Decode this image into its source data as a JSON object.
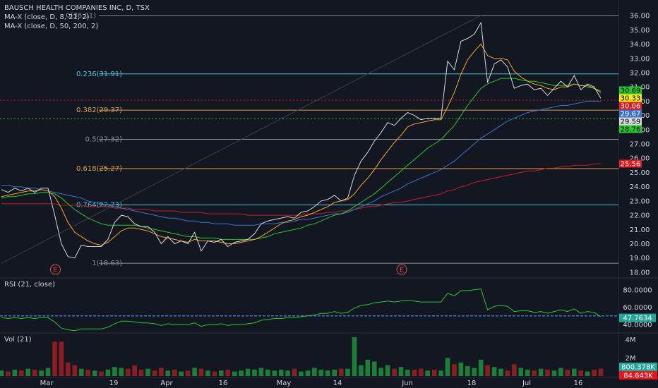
{
  "header": {
    "title": "BAUSCH HEALTH COMPANIES INC, D, TSX",
    "indicator1": "MA-X (close, D, 8, 21, 2)",
    "indicator2": "MA-X (close, D, 50, 200, 2)",
    "rsi_title": "RSI (21, close)",
    "vol_title": "Vol (21)"
  },
  "chart_data": {
    "type": "line",
    "x_axis": {
      "ticks": [
        "Mar",
        "19",
        "Apr",
        "16",
        "May",
        "14",
        "Jun",
        "18",
        "Jul",
        "16"
      ]
    },
    "price_axis": {
      "ylim": [
        17.6,
        36.6
      ],
      "ticks": [
        "36.00",
        "35.00",
        "34.00",
        "33.00",
        "32.00",
        "31.00",
        "30.00",
        "29.00",
        "28.00",
        "27.00",
        "26.00",
        "25.00",
        "24.00",
        "23.00",
        "22.00",
        "21.00",
        "20.00",
        "19.00",
        "18.00"
      ]
    },
    "price_close": [
      23.8,
      23.6,
      23.9,
      23.7,
      23.9,
      23.6,
      23.9,
      23.9,
      22.0,
      20.0,
      19.1,
      19.0,
      19.9,
      19.8,
      19.8,
      19.8,
      20.3,
      21.5,
      22.0,
      21.9,
      21.4,
      21.2,
      21.2,
      20.8,
      20.0,
      20.5,
      20.0,
      20.2,
      20.0,
      20.8,
      19.5,
      20.2,
      20.1,
      20.3,
      19.8,
      20.1,
      20.2,
      20.3,
      20.7,
      21.4,
      21.6,
      21.7,
      21.8,
      21.9,
      21.8,
      22.2,
      22.3,
      22.6,
      23.0,
      23.1,
      23.4,
      23.0,
      23.2,
      24.8,
      25.8,
      26.4,
      27.2,
      27.8,
      28.5,
      28.3,
      28.8,
      29.2,
      29.0,
      28.7,
      28.8,
      28.8,
      28.8,
      32.8,
      32.2,
      34.2,
      34.4,
      34.7,
      35.5,
      31.3,
      32.6,
      32.9,
      32.4,
      30.9,
      31.1,
      31.2,
      30.8,
      30.9,
      30.4,
      30.9,
      31.4,
      31.0,
      31.8,
      30.8,
      31.2,
      31.0,
      30.2
    ],
    "ma8": [
      23.3,
      23.4,
      23.5,
      23.6,
      23.7,
      23.7,
      23.8,
      23.7,
      23.3,
      22.5,
      21.5,
      20.8,
      20.5,
      20.2,
      20.0,
      19.9,
      20.1,
      20.5,
      20.9,
      21.1,
      21.1,
      21.0,
      20.9,
      20.7,
      20.5,
      20.4,
      20.3,
      20.2,
      20.1,
      20.3,
      20.2,
      20.2,
      20.2,
      20.1,
      20.0,
      20.0,
      20.1,
      20.2,
      20.3,
      20.5,
      20.8,
      21.1,
      21.4,
      21.6,
      21.7,
      21.9,
      22.0,
      22.2,
      22.4,
      22.6,
      22.9,
      23.0,
      23.1,
      23.5,
      24.1,
      24.6,
      25.2,
      25.9,
      26.5,
      27.1,
      27.6,
      28.2,
      28.4,
      28.5,
      28.6,
      28.7,
      28.7,
      29.6,
      30.6,
      31.9,
      32.9,
      33.5,
      34.0,
      33.2,
      33.0,
      33.0,
      32.9,
      32.1,
      31.7,
      31.4,
      31.2,
      31.1,
      30.9,
      30.8,
      31.0,
      31.0,
      31.2,
      31.1,
      31.1,
      30.9,
      30.6
    ],
    "ma21": [
      23.2,
      23.3,
      23.3,
      23.4,
      23.5,
      23.5,
      23.6,
      23.6,
      23.5,
      23.2,
      22.8,
      22.4,
      22.1,
      21.8,
      21.6,
      21.4,
      21.3,
      21.3,
      21.3,
      21.3,
      21.3,
      21.2,
      21.1,
      21.0,
      20.9,
      20.8,
      20.7,
      20.6,
      20.5,
      20.5,
      20.4,
      20.4,
      20.4,
      20.3,
      20.3,
      20.3,
      20.3,
      20.3,
      20.3,
      20.4,
      20.5,
      20.7,
      20.8,
      20.9,
      21.0,
      21.1,
      21.3,
      21.4,
      21.6,
      21.8,
      22.0,
      22.1,
      22.3,
      22.6,
      22.9,
      23.2,
      23.5,
      23.9,
      24.3,
      24.7,
      25.1,
      25.5,
      25.9,
      26.3,
      26.7,
      27.0,
      27.3,
      27.8,
      28.3,
      29.0,
      29.7,
      30.3,
      30.9,
      31.2,
      31.4,
      31.6,
      31.6,
      31.6,
      31.5,
      31.4,
      31.4,
      31.3,
      31.2,
      31.1,
      31.1,
      31.1,
      31.2,
      31.1,
      31.0,
      30.9,
      30.7
    ],
    "ma50": [
      24.1,
      24.1,
      24.0,
      24.0,
      23.9,
      23.9,
      23.8,
      23.7,
      23.6,
      23.5,
      23.4,
      23.3,
      23.2,
      23.0,
      22.9,
      22.8,
      22.7,
      22.6,
      22.5,
      22.4,
      22.3,
      22.2,
      22.1,
      22.0,
      21.9,
      21.8,
      21.8,
      21.7,
      21.6,
      21.6,
      21.5,
      21.5,
      21.4,
      21.4,
      21.4,
      21.3,
      21.3,
      21.3,
      21.3,
      21.4,
      21.4,
      21.4,
      21.5,
      21.5,
      21.6,
      21.7,
      21.7,
      21.8,
      21.9,
      22.0,
      22.1,
      22.1,
      22.2,
      22.4,
      22.6,
      22.8,
      23.0,
      23.3,
      23.5,
      23.7,
      23.9,
      24.2,
      24.4,
      24.6,
      24.8,
      25.0,
      25.2,
      25.5,
      25.8,
      26.2,
      26.6,
      27.0,
      27.4,
      27.7,
      28.0,
      28.3,
      28.6,
      28.8,
      29.0,
      29.2,
      29.3,
      29.4,
      29.5,
      29.6,
      29.7,
      29.7,
      29.8,
      29.9,
      30.0,
      30.0,
      30.0
    ],
    "ma200": [
      22.8,
      22.8,
      22.8,
      22.8,
      22.8,
      22.8,
      22.8,
      22.8,
      22.8,
      22.7,
      22.7,
      22.7,
      22.7,
      22.6,
      22.6,
      22.6,
      22.6,
      22.5,
      22.5,
      22.5,
      22.4,
      22.4,
      22.4,
      22.3,
      22.3,
      22.3,
      22.3,
      22.2,
      22.2,
      22.2,
      22.2,
      22.1,
      22.1,
      22.1,
      22.1,
      22.1,
      22.1,
      22.0,
      22.0,
      22.0,
      22.0,
      22.0,
      22.0,
      22.0,
      22.0,
      22.0,
      22.1,
      22.1,
      22.1,
      22.2,
      22.2,
      22.3,
      22.3,
      22.4,
      22.5,
      22.6,
      22.6,
      22.7,
      22.8,
      22.9,
      22.9,
      23.0,
      23.1,
      23.2,
      23.3,
      23.4,
      23.5,
      23.7,
      23.8,
      24.0,
      24.1,
      24.3,
      24.4,
      24.5,
      24.6,
      24.7,
      24.8,
      24.9,
      25.0,
      25.1,
      25.1,
      25.2,
      25.3,
      25.3,
      25.4,
      25.4,
      25.5,
      25.5,
      25.5,
      25.6,
      25.6
    ],
    "fib_levels": [
      {
        "label": "0.236(31.91)",
        "value": 31.91,
        "color": "#4fc3d9"
      },
      {
        "label": "0.382(29.37)",
        "value": 29.37,
        "color": "#e0a244"
      },
      {
        "label": "0.5(27.32)",
        "value": 27.32,
        "color": "#8a8e99"
      },
      {
        "label": "0.618(25.27)",
        "value": 25.27,
        "color": "#e0a244"
      },
      {
        "label": "0.764(22.73)",
        "value": 22.73,
        "color": "#4fc3d9"
      },
      {
        "label": "1(18.63)",
        "value": 18.63,
        "color": "#8a8e99"
      }
    ],
    "fib_top": {
      "label": "0(36.01)",
      "value": 36.01
    },
    "price_badges": [
      {
        "text": "30.69",
        "bg": "#26c72f",
        "fg": "#000000",
        "value": 30.69
      },
      {
        "text": "30.33",
        "bg": "#f5eb19",
        "fg": "#000000",
        "value": 30.33
      },
      {
        "text": "30.06",
        "bg": "#e3181e",
        "fg": "#ffffff",
        "value": 30.06
      },
      {
        "text": "29.67",
        "bg": "#3d73c7",
        "fg": "#ffffff",
        "value": 29.67
      },
      {
        "text": "29.59",
        "bg": "#d7d8dc",
        "fg": "#000000",
        "value": 29.59
      },
      {
        "text": "28.76",
        "bg": "#26c72f",
        "fg": "#000000",
        "value": 28.76
      },
      {
        "text": "25.56",
        "bg": "#e3181e",
        "fg": "#ffffff",
        "value": 25.56
      }
    ],
    "hlines": [
      {
        "value": 30.06,
        "color": "#e3181e"
      },
      {
        "value": 28.76,
        "color": "#26c72f"
      }
    ],
    "earnings_markers": [
      {
        "label": "E",
        "index": 8
      },
      {
        "label": "E",
        "index": 60
      }
    ],
    "rsi": {
      "ylim": [
        32,
        92
      ],
      "ticks": [
        "80.0000",
        "60.0000",
        "40.0000"
      ],
      "current": "47.7634",
      "values": [
        48,
        47,
        48,
        47,
        48,
        47,
        48,
        48,
        43,
        36,
        34,
        33,
        35,
        35,
        35,
        35,
        37,
        41,
        44,
        44,
        43,
        42,
        42,
        41,
        39,
        41,
        40,
        40,
        40,
        42,
        38,
        40,
        40,
        41,
        39,
        40,
        40,
        41,
        42,
        45,
        46,
        47,
        47,
        48,
        48,
        49,
        50,
        51,
        53,
        53,
        55,
        53,
        54,
        59,
        62,
        63,
        65,
        66,
        67,
        66,
        67,
        68,
        67,
        66,
        66,
        66,
        66,
        76,
        73,
        79,
        79,
        80,
        81,
        57,
        61,
        62,
        61,
        55,
        56,
        56,
        54,
        55,
        53,
        55,
        57,
        55,
        58,
        53,
        55,
        54,
        49
      ]
    },
    "volume": {
      "ymax": 4.6,
      "ticks": [
        "4M",
        "2M"
      ],
      "badges": [
        {
          "text": "800.378K",
          "bg": "#26a69a"
        },
        {
          "text": "84.643K",
          "bg": "#e3181e"
        }
      ],
      "values": [
        0.6,
        0.5,
        0.7,
        0.6,
        0.8,
        0.7,
        0.6,
        0.9,
        3.8,
        3.8,
        1.5,
        1.2,
        0.8,
        0.7,
        0.6,
        0.5,
        0.7,
        1.0,
        0.9,
        0.8,
        1.2,
        0.7,
        0.8,
        0.6,
        0.9,
        0.6,
        0.7,
        0.5,
        0.6,
        0.9,
        0.8,
        0.6,
        0.5,
        0.6,
        0.7,
        0.5,
        0.6,
        0.8,
        0.7,
        0.9,
        0.7,
        0.6,
        0.7,
        0.6,
        0.8,
        0.5,
        0.6,
        0.9,
        0.7,
        0.6,
        0.7,
        0.8,
        0.8,
        4.3,
        1.2,
        1.8,
        1.6,
        0.9,
        1.2,
        0.8,
        1.0,
        0.7,
        0.7,
        0.8,
        0.6,
        0.7,
        0.6,
        2.0,
        1.3,
        1.5,
        1.1,
        0.9,
        1.8,
        1.2,
        1.0,
        0.8,
        0.6,
        1.3,
        0.9,
        0.7,
        0.6,
        0.8,
        0.7,
        0.6,
        0.9,
        0.7,
        0.8,
        0.6,
        0.5,
        0.7,
        0.8
      ],
      "up": [
        1,
        0,
        1,
        0,
        1,
        0,
        1,
        1,
        0,
        0,
        0,
        0,
        1,
        0,
        1,
        0,
        1,
        1,
        1,
        0,
        0,
        0,
        1,
        0,
        0,
        1,
        0,
        1,
        0,
        1,
        0,
        1,
        0,
        1,
        0,
        1,
        1,
        1,
        1,
        1,
        1,
        1,
        1,
        1,
        0,
        1,
        1,
        1,
        1,
        1,
        1,
        0,
        1,
        1,
        1,
        1,
        1,
        1,
        1,
        0,
        1,
        1,
        0,
        0,
        1,
        0,
        1,
        1,
        0,
        1,
        1,
        1,
        1,
        0,
        1,
        1,
        0,
        0,
        1,
        1,
        0,
        1,
        0,
        1,
        1,
        0,
        1,
        0,
        1,
        0,
        0
      ]
    },
    "colors": {
      "close": "#d7d8dc",
      "ma8": "#f5a623",
      "ma21": "#26c72f",
      "ma50": "#3d73c7",
      "ma200": "#c81e25",
      "vol_up": "#1b7f3a",
      "vol_down": "#8a1e22",
      "rsi": "#26c72f"
    }
  }
}
